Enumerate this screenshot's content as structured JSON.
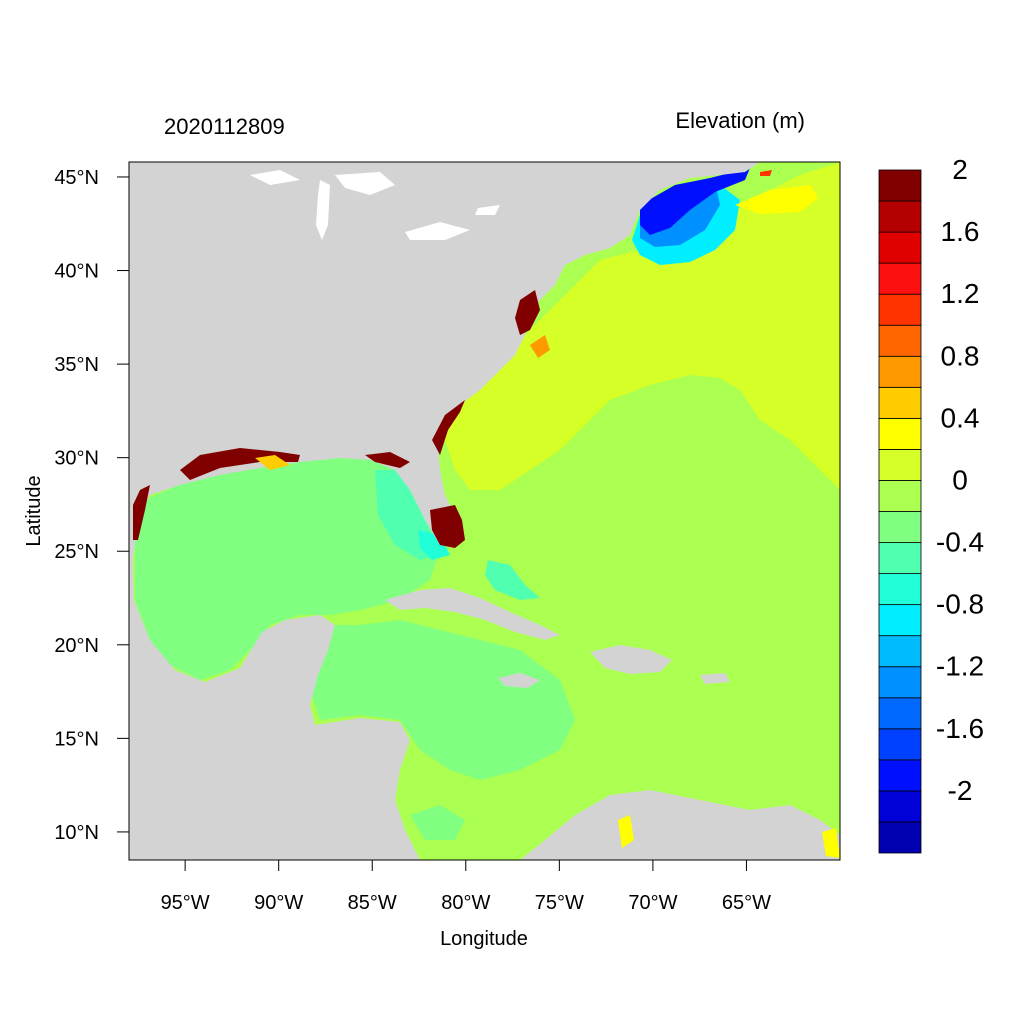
{
  "header": {
    "timestamp": "2020112809",
    "variable_title": "Elevation (m)"
  },
  "axes": {
    "xlabel": "Longitude",
    "ylabel": "Latitude",
    "x_ticks": [
      {
        "value": -95,
        "label": "95°W"
      },
      {
        "value": -90,
        "label": "90°W"
      },
      {
        "value": -85,
        "label": "85°W"
      },
      {
        "value": -80,
        "label": "80°W"
      },
      {
        "value": -75,
        "label": "75°W"
      },
      {
        "value": -70,
        "label": "70°W"
      },
      {
        "value": -65,
        "label": "65°W"
      }
    ],
    "y_ticks": [
      {
        "value": 45,
        "label": "45°N"
      },
      {
        "value": 40,
        "label": "40°N"
      },
      {
        "value": 35,
        "label": "35°N"
      },
      {
        "value": 30,
        "label": "30°N"
      },
      {
        "value": 25,
        "label": "25°N"
      },
      {
        "value": 20,
        "label": "20°N"
      },
      {
        "value": 15,
        "label": "15°N"
      },
      {
        "value": 10,
        "label": "10°N"
      }
    ],
    "xlim": [
      -98,
      -60
    ],
    "ylim": [
      8.5,
      45.8
    ]
  },
  "colorbar": {
    "colors": [
      "#0000b0",
      "#0000d8",
      "#0010ff",
      "#0040ff",
      "#0068ff",
      "#0090ff",
      "#00bcff",
      "#00eeff",
      "#20ffd8",
      "#50ffb0",
      "#80ff80",
      "#aaff50",
      "#d6ff28",
      "#ffff00",
      "#ffcc00",
      "#ff9900",
      "#ff6600",
      "#ff3300",
      "#ff1010",
      "#e00000",
      "#b40000",
      "#800000"
    ],
    "labels": [
      {
        "boundary": 2,
        "text": "-2"
      },
      {
        "boundary": 4,
        "text": "-1.6"
      },
      {
        "boundary": 6,
        "text": "-1.2"
      },
      {
        "boundary": 8,
        "text": "-0.8"
      },
      {
        "boundary": 10,
        "text": "-0.4"
      },
      {
        "boundary": 12,
        "text": "0"
      },
      {
        "boundary": 14,
        "text": "0.4"
      },
      {
        "boundary": 16,
        "text": "0.8"
      },
      {
        "boundary": 18,
        "text": "1.2"
      },
      {
        "boundary": 20,
        "text": "1.6"
      },
      {
        "boundary": 22,
        "text": "2"
      }
    ]
  },
  "map_colors": {
    "land": "#d3d3d3",
    "ocean_base": "#aaff50",
    "gulf": "#80ff80",
    "atlantic_north": "#d6ff28",
    "negative_light": "#50ffb0",
    "negative_cyan": "#20ffd8",
    "maine_deep": "#0010ff",
    "surge_high": "#800000",
    "surge_yellow": "#ffff00",
    "lakes": "#ffffff"
  }
}
